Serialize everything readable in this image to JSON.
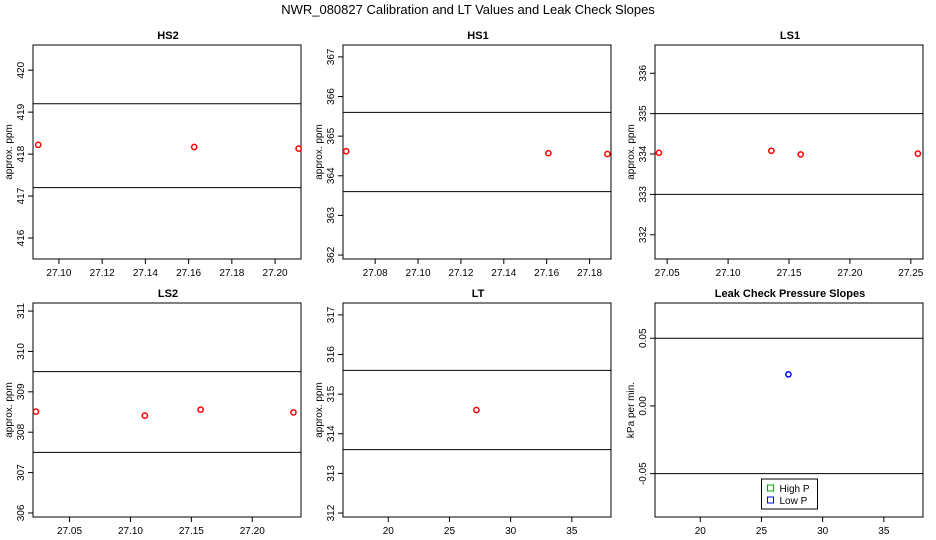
{
  "page_title": "NWR_080827  Calibration and LT Values and Leak Check Slopes",
  "chart_data": [
    {
      "id": "hs2",
      "type": "scatter",
      "title": "HS2",
      "ylabel": "approx. ppm",
      "xlim": [
        27.088,
        27.212
      ],
      "ylim": [
        415.5,
        420.6
      ],
      "x_ticks": [
        27.1,
        27.12,
        27.14,
        27.16,
        27.18,
        27.2
      ],
      "x_tick_labels": [
        "27.10",
        "27.12",
        "27.14",
        "27.16",
        "27.18",
        "27.20"
      ],
      "y_ticks": [
        416,
        417,
        418,
        419,
        420
      ],
      "y_tick_labels": [
        "416",
        "417",
        "418",
        "419",
        "420"
      ],
      "hlines": [
        419.2,
        417.2
      ],
      "points": [
        {
          "x": 27.0904,
          "y": 418.22,
          "color": "#ff0000"
        },
        {
          "x": 27.1626,
          "y": 418.17,
          "color": "#ff0000"
        },
        {
          "x": 27.2109,
          "y": 418.13,
          "color": "#ff0000"
        }
      ]
    },
    {
      "id": "hs1",
      "type": "scatter",
      "title": "HS1",
      "ylabel": "approx. ppm",
      "xlim": [
        27.065,
        27.19
      ],
      "ylim": [
        361.9,
        367.3
      ],
      "x_ticks": [
        27.08,
        27.1,
        27.12,
        27.14,
        27.16,
        27.18
      ],
      "x_tick_labels": [
        "27.08",
        "27.10",
        "27.12",
        "27.14",
        "27.16",
        "27.18"
      ],
      "y_ticks": [
        362,
        363,
        364,
        365,
        366,
        367
      ],
      "y_tick_labels": [
        "362",
        "363",
        "364",
        "365",
        "366",
        "367"
      ],
      "hlines": [
        365.6,
        363.6
      ],
      "points": [
        {
          "x": 27.0665,
          "y": 364.62,
          "color": "#ff0000"
        },
        {
          "x": 27.1608,
          "y": 364.57,
          "color": "#ff0000"
        },
        {
          "x": 27.1883,
          "y": 364.55,
          "color": "#ff0000"
        }
      ]
    },
    {
      "id": "ls1",
      "type": "scatter",
      "title": "LS1",
      "ylabel": "approx. ppm",
      "xlim": [
        27.04,
        27.26
      ],
      "ylim": [
        331.4,
        336.7
      ],
      "x_ticks": [
        27.05,
        27.1,
        27.15,
        27.2,
        27.25
      ],
      "x_tick_labels": [
        "27.05",
        "27.10",
        "27.15",
        "27.20",
        "27.25"
      ],
      "y_ticks": [
        332,
        333,
        334,
        335,
        336
      ],
      "y_tick_labels": [
        "332",
        "333",
        "334",
        "335",
        "336"
      ],
      "hlines": [
        335.0,
        333.0
      ],
      "points": [
        {
          "x": 27.0432,
          "y": 334.03,
          "color": "#ff0000"
        },
        {
          "x": 27.1355,
          "y": 334.08,
          "color": "#ff0000"
        },
        {
          "x": 27.1596,
          "y": 333.99,
          "color": "#ff0000"
        },
        {
          "x": 27.2558,
          "y": 334.01,
          "color": "#ff0000"
        }
      ]
    },
    {
      "id": "ls2",
      "type": "scatter",
      "title": "LS2",
      "ylabel": "approx. ppm",
      "xlim": [
        27.02,
        27.24
      ],
      "ylim": [
        305.9,
        311.2
      ],
      "x_ticks": [
        27.05,
        27.1,
        27.15,
        27.2
      ],
      "x_tick_labels": [
        "27.05",
        "27.10",
        "27.15",
        "27.20"
      ],
      "y_ticks": [
        306,
        307,
        308,
        309,
        310,
        311
      ],
      "y_tick_labels": [
        "306",
        "307",
        "308",
        "309",
        "310",
        "311"
      ],
      "hlines": [
        309.5,
        307.5
      ],
      "points": [
        {
          "x": 27.0224,
          "y": 308.51,
          "color": "#ff0000"
        },
        {
          "x": 27.1118,
          "y": 308.41,
          "color": "#ff0000"
        },
        {
          "x": 27.1576,
          "y": 308.56,
          "color": "#ff0000"
        },
        {
          "x": 27.2338,
          "y": 308.49,
          "color": "#ff0000"
        }
      ]
    },
    {
      "id": "lt",
      "type": "scatter",
      "title": "LT",
      "ylabel": "approx. ppm",
      "xlim": [
        16.3,
        38.2
      ],
      "ylim": [
        311.9,
        317.3
      ],
      "x_ticks": [
        20,
        25,
        30,
        35
      ],
      "x_tick_labels": [
        "20",
        "25",
        "30",
        "35"
      ],
      "y_ticks": [
        312,
        313,
        314,
        315,
        316,
        317
      ],
      "y_tick_labels": [
        "312",
        "313",
        "314",
        "315",
        "316",
        "317"
      ],
      "hlines": [
        315.6,
        313.6
      ],
      "points": [
        {
          "x": 27.2,
          "y": 314.6,
          "color": "#ff0000"
        }
      ]
    },
    {
      "id": "leak",
      "type": "scatter",
      "title": "Leak Check Pressure Slopes",
      "ylabel": "kPa per min.",
      "xlim": [
        16.3,
        38.2
      ],
      "ylim": [
        -0.082,
        0.076
      ],
      "x_ticks": [
        20,
        25,
        30,
        35
      ],
      "x_tick_labels": [
        "20",
        "25",
        "30",
        "35"
      ],
      "y_ticks": [
        -0.05,
        0.0,
        0.05
      ],
      "y_tick_labels": [
        "-0.05",
        "0.00",
        "0.05"
      ],
      "hlines": [
        0.05,
        -0.05
      ],
      "points": [
        {
          "x": 27.2,
          "y": 0.0233,
          "color": "#0000ff"
        }
      ],
      "legend": {
        "placement": "bottom-center",
        "entries": [
          {
            "label": "High P",
            "color": "#00aa00"
          },
          {
            "label": "Low P",
            "color": "#0000ff"
          }
        ]
      }
    }
  ]
}
